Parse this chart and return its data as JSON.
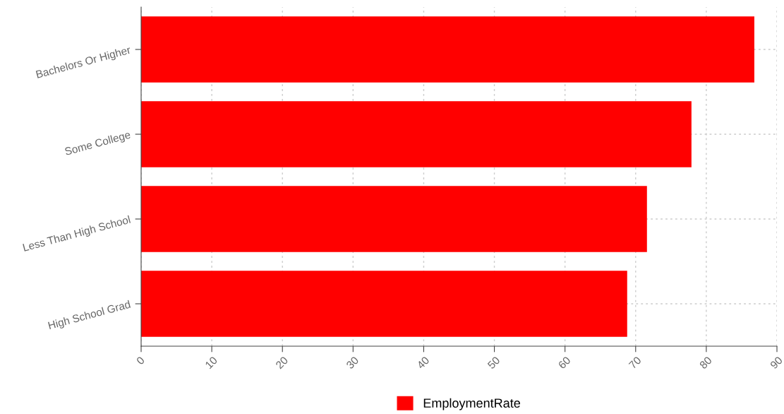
{
  "chart_data": {
    "type": "bar",
    "orientation": "horizontal",
    "categories": [
      "Bachelors Or Higher",
      "Some College",
      "Less Than High School",
      "High School Grad"
    ],
    "series": [
      {
        "name": "EmploymentRate",
        "color": "#ff0000",
        "values": [
          86.8,
          77.9,
          71.6,
          68.8
        ]
      }
    ],
    "xlim": [
      0,
      90
    ],
    "xticks": [
      0,
      10,
      20,
      30,
      40,
      50,
      60,
      70,
      80,
      90
    ],
    "grid": true,
    "legend": "bottom"
  }
}
